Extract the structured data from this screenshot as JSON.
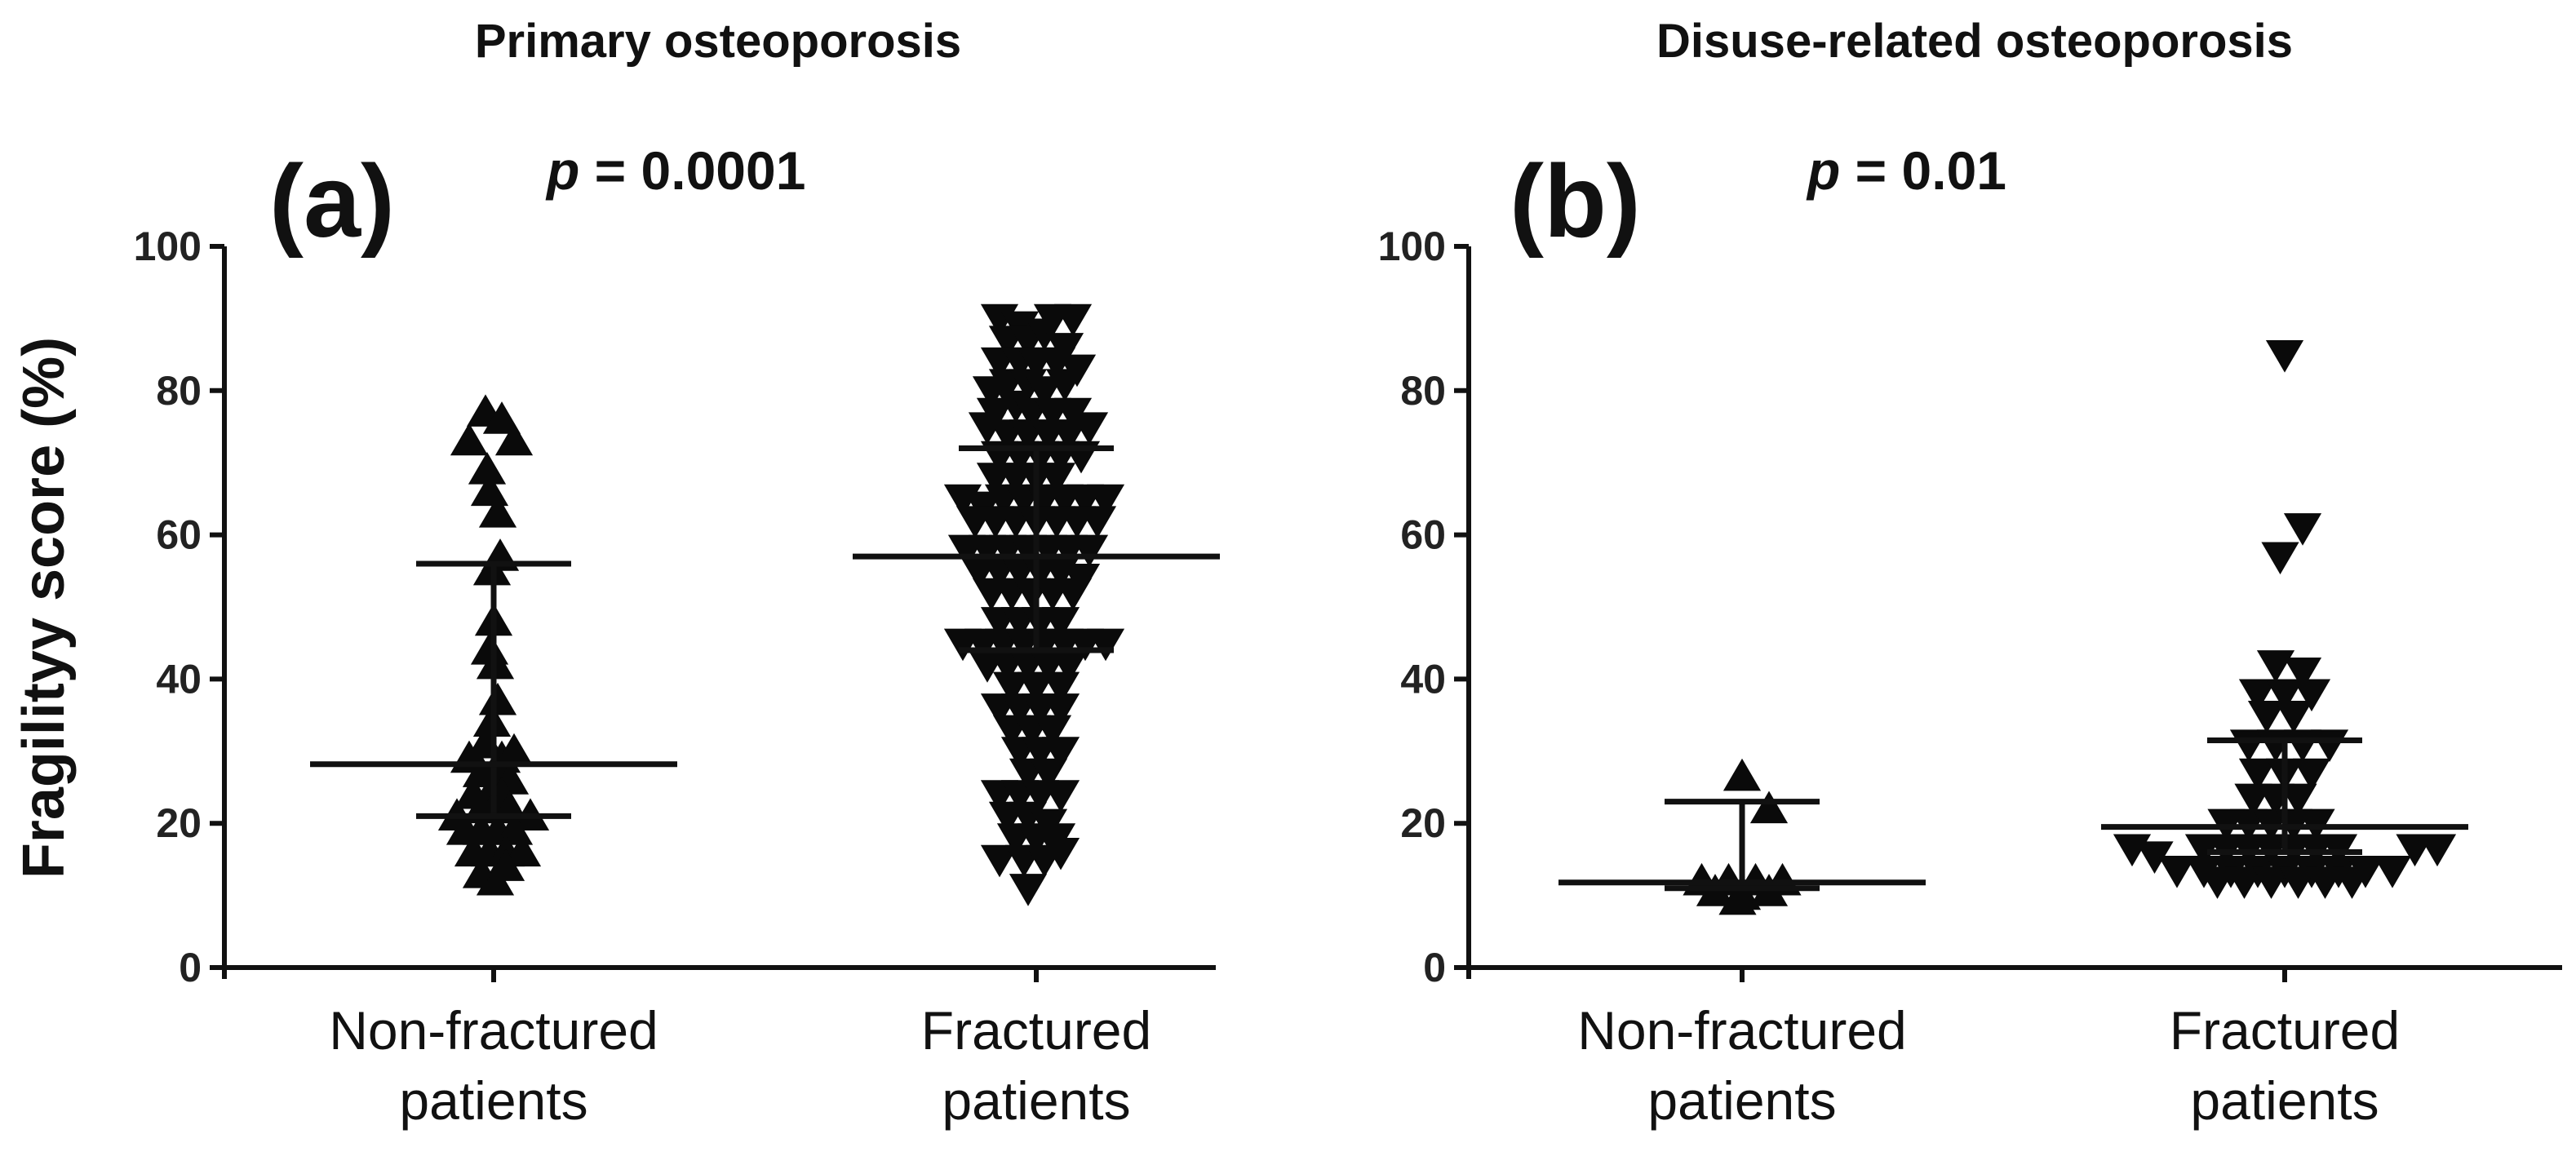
{
  "figure": {
    "ylabel": "Fragilityy score (%)"
  },
  "chart_data": [
    {
      "type": "scatter",
      "id": "panel-a",
      "title": "Primary osteoporosis",
      "panel_label": "(a)",
      "p_symbol": "p",
      "p_text": " = 0.0001",
      "xlabel": "",
      "ylabel": "Fragilityy score (%)",
      "ylim": [
        0,
        100
      ],
      "yticks": [
        0,
        20,
        40,
        60,
        80,
        100
      ],
      "categories": [
        {
          "line1": "Non-fractured",
          "line2": "patients"
        },
        {
          "line1": "Fractured",
          "line2": "patients"
        }
      ],
      "series": [
        {
          "name": "Non-fractured patients",
          "marker": "triangle-up",
          "median": 28.2,
          "iqr": [
            21,
            56
          ],
          "values": [
            {
              "j": -0.1,
              "y": 77
            },
            {
              "j": 0.1,
              "y": 76
            },
            {
              "j": -0.3,
              "y": 73
            },
            {
              "j": 0.25,
              "y": 73
            },
            {
              "j": -0.08,
              "y": 69
            },
            {
              "j": -0.05,
              "y": 66
            },
            {
              "j": 0.05,
              "y": 63
            },
            {
              "j": 0.08,
              "y": 57
            },
            {
              "j": -0.02,
              "y": 55
            },
            {
              "j": 0.0,
              "y": 48
            },
            {
              "j": -0.05,
              "y": 44
            },
            {
              "j": 0.02,
              "y": 42
            },
            {
              "j": 0.05,
              "y": 37
            },
            {
              "j": -0.02,
              "y": 34
            },
            {
              "j": -0.1,
              "y": 31
            },
            {
              "j": -0.3,
              "y": 29
            },
            {
              "j": 0.1,
              "y": 29
            },
            {
              "j": 0.25,
              "y": 30
            },
            {
              "j": -0.15,
              "y": 27
            },
            {
              "j": 0.05,
              "y": 27
            },
            {
              "j": 0.2,
              "y": 26
            },
            {
              "j": -0.25,
              "y": 24
            },
            {
              "j": -0.05,
              "y": 24
            },
            {
              "j": 0.1,
              "y": 24
            },
            {
              "j": -0.45,
              "y": 21
            },
            {
              "j": -0.15,
              "y": 22
            },
            {
              "j": 0.0,
              "y": 22
            },
            {
              "j": 0.2,
              "y": 22
            },
            {
              "j": 0.45,
              "y": 21
            },
            {
              "j": -0.35,
              "y": 19
            },
            {
              "j": -0.15,
              "y": 19
            },
            {
              "j": 0.05,
              "y": 19
            },
            {
              "j": 0.25,
              "y": 19
            },
            {
              "j": -0.25,
              "y": 16
            },
            {
              "j": -0.05,
              "y": 16
            },
            {
              "j": 0.15,
              "y": 16
            },
            {
              "j": 0.35,
              "y": 16
            },
            {
              "j": -0.15,
              "y": 13
            },
            {
              "j": 0.02,
              "y": 12
            },
            {
              "j": 0.15,
              "y": 14
            }
          ]
        },
        {
          "name": "Fractured patients",
          "marker": "triangle-down",
          "median": 57,
          "iqr": [
            44,
            72
          ],
          "values": [
            {
              "j": -0.45,
              "y": 90
            },
            {
              "j": -0.2,
              "y": 89
            },
            {
              "j": 0.2,
              "y": 90
            },
            {
              "j": 0.45,
              "y": 90
            },
            {
              "j": -0.35,
              "y": 87
            },
            {
              "j": -0.1,
              "y": 87
            },
            {
              "j": 0.1,
              "y": 88
            },
            {
              "j": 0.35,
              "y": 86
            },
            {
              "j": -0.45,
              "y": 84
            },
            {
              "j": -0.2,
              "y": 84
            },
            {
              "j": 0.0,
              "y": 84
            },
            {
              "j": 0.25,
              "y": 84
            },
            {
              "j": 0.5,
              "y": 83
            },
            {
              "j": -0.55,
              "y": 80
            },
            {
              "j": -0.35,
              "y": 81
            },
            {
              "j": -0.1,
              "y": 81
            },
            {
              "j": 0.1,
              "y": 80
            },
            {
              "j": 0.35,
              "y": 81
            },
            {
              "j": -0.5,
              "y": 77
            },
            {
              "j": -0.25,
              "y": 78
            },
            {
              "j": -0.05,
              "y": 77
            },
            {
              "j": 0.2,
              "y": 77
            },
            {
              "j": 0.45,
              "y": 77
            },
            {
              "j": -0.6,
              "y": 75
            },
            {
              "j": -0.35,
              "y": 74
            },
            {
              "j": -0.1,
              "y": 74
            },
            {
              "j": 0.15,
              "y": 74
            },
            {
              "j": 0.4,
              "y": 74
            },
            {
              "j": 0.65,
              "y": 75
            },
            {
              "j": -0.45,
              "y": 71
            },
            {
              "j": -0.2,
              "y": 71
            },
            {
              "j": 0.05,
              "y": 71
            },
            {
              "j": 0.3,
              "y": 71
            },
            {
              "j": 0.55,
              "y": 71
            },
            {
              "j": -0.5,
              "y": 68
            },
            {
              "j": -0.25,
              "y": 68
            },
            {
              "j": 0.0,
              "y": 68
            },
            {
              "j": 0.25,
              "y": 68
            },
            {
              "j": -0.9,
              "y": 65
            },
            {
              "j": -0.65,
              "y": 64
            },
            {
              "j": -0.4,
              "y": 65
            },
            {
              "j": -0.15,
              "y": 65
            },
            {
              "j": 0.1,
              "y": 65
            },
            {
              "j": 0.35,
              "y": 65
            },
            {
              "j": 0.6,
              "y": 65
            },
            {
              "j": 0.85,
              "y": 65
            },
            {
              "j": -0.75,
              "y": 62
            },
            {
              "j": -0.5,
              "y": 62
            },
            {
              "j": -0.25,
              "y": 62
            },
            {
              "j": 0.0,
              "y": 62
            },
            {
              "j": 0.25,
              "y": 62
            },
            {
              "j": 0.5,
              "y": 62
            },
            {
              "j": 0.75,
              "y": 62
            },
            {
              "j": -0.85,
              "y": 58
            },
            {
              "j": -0.6,
              "y": 58
            },
            {
              "j": -0.35,
              "y": 58
            },
            {
              "j": -0.1,
              "y": 58
            },
            {
              "j": 0.15,
              "y": 58
            },
            {
              "j": 0.4,
              "y": 58
            },
            {
              "j": 0.65,
              "y": 58
            },
            {
              "j": -0.7,
              "y": 55
            },
            {
              "j": -0.45,
              "y": 55
            },
            {
              "j": -0.2,
              "y": 55
            },
            {
              "j": 0.05,
              "y": 55
            },
            {
              "j": 0.3,
              "y": 55
            },
            {
              "j": 0.55,
              "y": 54
            },
            {
              "j": -0.55,
              "y": 52
            },
            {
              "j": -0.3,
              "y": 52
            },
            {
              "j": -0.05,
              "y": 52
            },
            {
              "j": 0.2,
              "y": 52
            },
            {
              "j": 0.45,
              "y": 52
            },
            {
              "j": -0.45,
              "y": 48
            },
            {
              "j": -0.2,
              "y": 48
            },
            {
              "j": 0.05,
              "y": 48
            },
            {
              "j": 0.3,
              "y": 48
            },
            {
              "j": -0.9,
              "y": 45
            },
            {
              "j": -0.65,
              "y": 45
            },
            {
              "j": -0.4,
              "y": 45
            },
            {
              "j": -0.15,
              "y": 45
            },
            {
              "j": 0.1,
              "y": 45
            },
            {
              "j": 0.35,
              "y": 45
            },
            {
              "j": 0.6,
              "y": 45
            },
            {
              "j": 0.85,
              "y": 45
            },
            {
              "j": -0.6,
              "y": 42
            },
            {
              "j": -0.35,
              "y": 42
            },
            {
              "j": -0.1,
              "y": 42
            },
            {
              "j": 0.15,
              "y": 42
            },
            {
              "j": 0.4,
              "y": 42
            },
            {
              "j": -0.3,
              "y": 39
            },
            {
              "j": 0.0,
              "y": 39
            },
            {
              "j": 0.3,
              "y": 39
            },
            {
              "j": -0.45,
              "y": 36
            },
            {
              "j": -0.2,
              "y": 36
            },
            {
              "j": 0.05,
              "y": 36
            },
            {
              "j": 0.3,
              "y": 36
            },
            {
              "j": -0.3,
              "y": 33
            },
            {
              "j": -0.05,
              "y": 33
            },
            {
              "j": 0.2,
              "y": 33
            },
            {
              "j": -0.2,
              "y": 30
            },
            {
              "j": 0.05,
              "y": 30
            },
            {
              "j": 0.3,
              "y": 30
            },
            {
              "j": -0.1,
              "y": 27
            },
            {
              "j": 0.15,
              "y": 27
            },
            {
              "j": -0.45,
              "y": 24
            },
            {
              "j": -0.2,
              "y": 24
            },
            {
              "j": 0.05,
              "y": 24
            },
            {
              "j": 0.3,
              "y": 24
            },
            {
              "j": -0.35,
              "y": 21
            },
            {
              "j": -0.1,
              "y": 21
            },
            {
              "j": 0.15,
              "y": 20
            },
            {
              "j": -0.25,
              "y": 18
            },
            {
              "j": 0.0,
              "y": 18
            },
            {
              "j": 0.25,
              "y": 18
            },
            {
              "j": -0.45,
              "y": 15
            },
            {
              "j": -0.15,
              "y": 15
            },
            {
              "j": 0.1,
              "y": 15
            },
            {
              "j": 0.3,
              "y": 16
            },
            {
              "j": -0.1,
              "y": 11
            }
          ]
        }
      ]
    },
    {
      "type": "scatter",
      "id": "panel-b",
      "title": "Disuse-related osteoporosis",
      "panel_label": "(b)",
      "p_symbol": "p",
      "p_text": " = 0.01",
      "xlabel": "",
      "ylabel": "Fragilityy score (%)",
      "ylim": [
        0,
        100
      ],
      "yticks": [
        0,
        20,
        40,
        60,
        80,
        100
      ],
      "categories": [
        {
          "line1": "Non-fractured",
          "line2": "patients"
        },
        {
          "line1": "Fractured",
          "line2": "patients"
        }
      ],
      "series": [
        {
          "name": "Non-fractured patients",
          "marker": "triangle-up",
          "median": 11.8,
          "iqr": [
            11,
            23
          ],
          "values": [
            {
              "j": 0.0,
              "y": 26.5
            },
            {
              "j": 0.3,
              "y": 22
            },
            {
              "j": -0.45,
              "y": 12
            },
            {
              "j": -0.15,
              "y": 12
            },
            {
              "j": 0.15,
              "y": 12
            },
            {
              "j": 0.45,
              "y": 12
            },
            {
              "j": -0.3,
              "y": 10.5
            },
            {
              "j": 0.0,
              "y": 10
            },
            {
              "j": 0.3,
              "y": 10.5
            },
            {
              "j": -0.05,
              "y": 9.3
            }
          ]
        },
        {
          "name": "Fractured patients",
          "marker": "triangle-down",
          "median": 19.5,
          "iqr": [
            16,
            31.5
          ],
          "values": [
            {
              "j": 0.0,
              "y": 85
            },
            {
              "j": 0.2,
              "y": 61
            },
            {
              "j": -0.05,
              "y": 57
            },
            {
              "j": -0.1,
              "y": 42
            },
            {
              "j": 0.2,
              "y": 41
            },
            {
              "j": -0.3,
              "y": 38
            },
            {
              "j": 0.0,
              "y": 38
            },
            {
              "j": 0.3,
              "y": 38
            },
            {
              "j": -0.2,
              "y": 35
            },
            {
              "j": 0.1,
              "y": 35
            },
            {
              "j": -0.4,
              "y": 31
            },
            {
              "j": -0.1,
              "y": 31
            },
            {
              "j": 0.2,
              "y": 31
            },
            {
              "j": 0.5,
              "y": 31
            },
            {
              "j": -0.3,
              "y": 27
            },
            {
              "j": 0.0,
              "y": 27
            },
            {
              "j": 0.3,
              "y": 27
            },
            {
              "j": -0.35,
              "y": 23.5
            },
            {
              "j": -0.1,
              "y": 23.5
            },
            {
              "j": 0.15,
              "y": 23.5
            },
            {
              "j": -0.65,
              "y": 20
            },
            {
              "j": -0.4,
              "y": 20
            },
            {
              "j": -0.15,
              "y": 20
            },
            {
              "j": 0.1,
              "y": 20
            },
            {
              "j": 0.35,
              "y": 20
            },
            {
              "j": -1.7,
              "y": 16.5
            },
            {
              "j": -1.45,
              "y": 15.5
            },
            {
              "j": -0.9,
              "y": 16.5
            },
            {
              "j": -0.65,
              "y": 16.5
            },
            {
              "j": -0.4,
              "y": 16.5
            },
            {
              "j": -0.15,
              "y": 16.5
            },
            {
              "j": 0.1,
              "y": 16.5
            },
            {
              "j": 0.35,
              "y": 16.5
            },
            {
              "j": 0.6,
              "y": 16.5
            },
            {
              "j": 1.45,
              "y": 16.5
            },
            {
              "j": 1.7,
              "y": 16.5
            },
            {
              "j": -1.2,
              "y": 13.5
            },
            {
              "j": -0.9,
              "y": 13.5
            },
            {
              "j": -0.6,
              "y": 13.5
            },
            {
              "j": -0.3,
              "y": 13.5
            },
            {
              "j": 0.0,
              "y": 13.5
            },
            {
              "j": 0.3,
              "y": 13.5
            },
            {
              "j": 0.6,
              "y": 13.5
            },
            {
              "j": 0.9,
              "y": 13.5
            },
            {
              "j": 1.2,
              "y": 13.5
            },
            {
              "j": -0.75,
              "y": 12
            },
            {
              "j": -0.45,
              "y": 12
            },
            {
              "j": -0.15,
              "y": 12
            },
            {
              "j": 0.15,
              "y": 12
            },
            {
              "j": 0.45,
              "y": 12
            },
            {
              "j": 0.75,
              "y": 12
            }
          ]
        }
      ]
    }
  ]
}
